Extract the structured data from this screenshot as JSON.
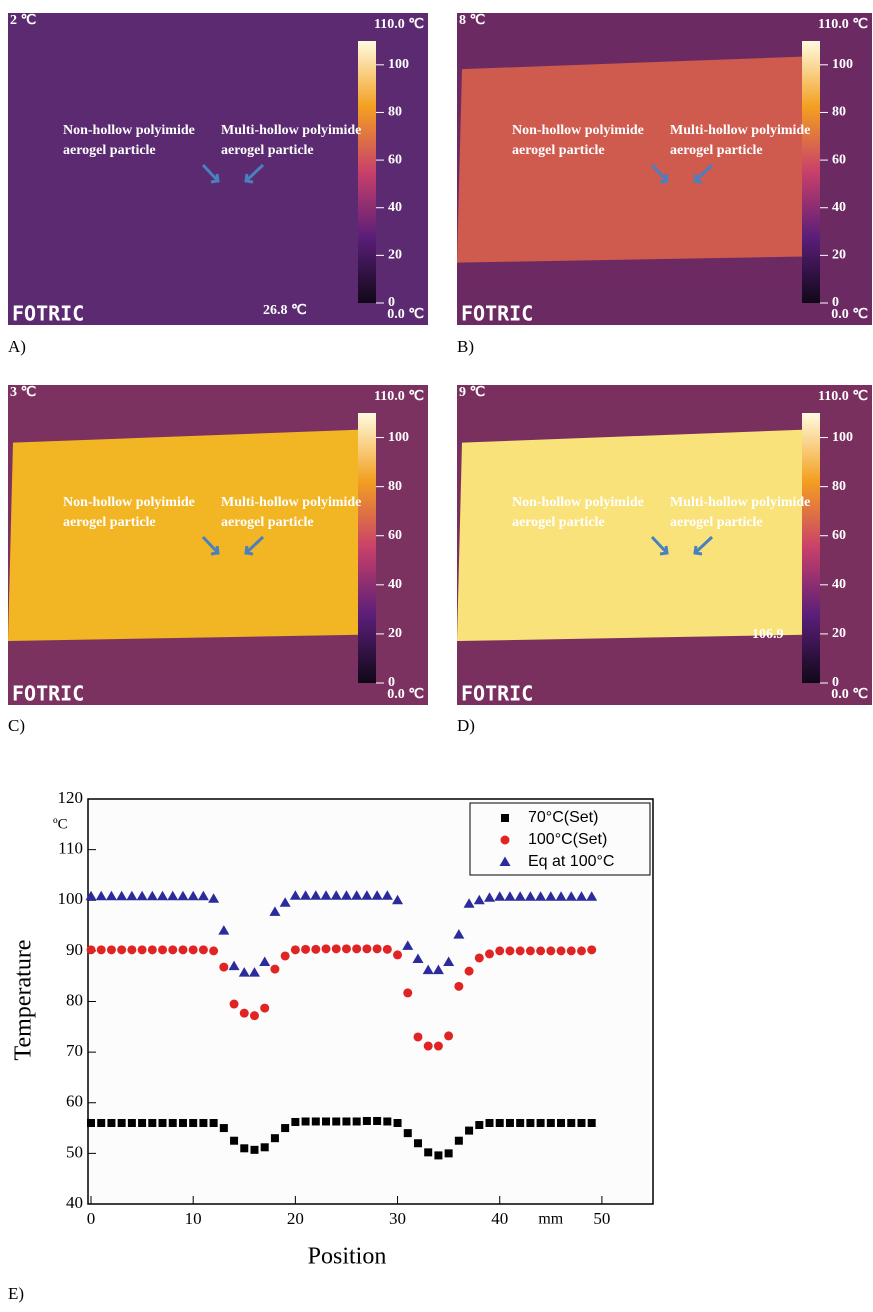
{
  "panels": [
    {
      "label": "A)",
      "top_left": "2 ℃",
      "max": "110.0 ℃",
      "min": "0.0 ℃",
      "annotation_left": [
        "Non-hollow polyimide",
        "aerogel particle"
      ],
      "annotation_right": [
        "Multi-hollow polyimide",
        "aerogel particle"
      ],
      "brand": "FOTRIC",
      "reading": "26.8 ℃"
    },
    {
      "label": "B)",
      "top_left": "8 ℃",
      "max": "110.0 ℃",
      "min": "0.0 ℃",
      "annotation_left": [
        "Non-hollow polyimide",
        "aerogel particle"
      ],
      "annotation_right": [
        "Multi-hollow polyimide",
        "aerogel particle"
      ],
      "brand": "FOTRIC"
    },
    {
      "label": "C)",
      "top_left": "3 ℃",
      "max": "110.0 ℃",
      "min": "0.0 ℃",
      "annotation_left": [
        "Non-hollow polyimide",
        "aerogel particle"
      ],
      "annotation_right": [
        "Multi-hollow polyimide",
        "aerogel particle"
      ],
      "brand": "FOTRIC"
    },
    {
      "label": "D)",
      "top_left": "9 ℃",
      "max": "110.0 ℃",
      "min": "0.0 ℃",
      "annotation_left": [
        "Non-hollow polyimide",
        "aerogel particle"
      ],
      "annotation_right": [
        "Multi-hollow polyimide",
        "aerogel particle"
      ],
      "brand": "FOTRIC",
      "reading": "106.9"
    }
  ],
  "colorbar_ticks": [
    100,
    80,
    60,
    40,
    20,
    0
  ],
  "colorbar_range": [
    0,
    110
  ],
  "chart_label": "E)",
  "chart_data": {
    "type": "scatter",
    "y_unit": "ºC",
    "x_unit": "mm",
    "xlabel": "Position",
    "ylabel": "Temperature",
    "x": [
      0,
      1,
      2,
      3,
      4,
      5,
      6,
      7,
      8,
      9,
      10,
      11,
      12,
      13,
      14,
      15,
      16,
      17,
      18,
      19,
      20,
      21,
      22,
      23,
      24,
      25,
      26,
      27,
      28,
      29,
      30,
      31,
      32,
      33,
      34,
      35,
      36,
      37,
      38,
      39,
      40,
      41,
      42,
      43,
      44,
      45,
      46,
      47,
      48,
      49
    ],
    "series": [
      {
        "name": "70°C(Set)",
        "color": "#000000",
        "marker": "square",
        "values": [
          56,
          56,
          56,
          56,
          56,
          56,
          56,
          56,
          56,
          56,
          56,
          56,
          56,
          55,
          52.5,
          51,
          50.7,
          51.2,
          53,
          55,
          56.2,
          56.3,
          56.3,
          56.3,
          56.3,
          56.3,
          56.3,
          56.4,
          56.4,
          56.3,
          56,
          54,
          52,
          50.2,
          49.6,
          50,
          52.5,
          54.5,
          55.6,
          56,
          56,
          56,
          56,
          56,
          56,
          56,
          56,
          56,
          56,
          56
        ]
      },
      {
        "name": "100°C(Set)",
        "color": "#e02424",
        "marker": "circle",
        "values": [
          90.2,
          90.2,
          90.2,
          90.2,
          90.2,
          90.2,
          90.2,
          90.2,
          90.2,
          90.2,
          90.2,
          90.2,
          90,
          86.8,
          79.5,
          77.7,
          77.2,
          78.7,
          86.4,
          89,
          90.2,
          90.3,
          90.3,
          90.4,
          90.4,
          90.4,
          90.4,
          90.4,
          90.4,
          90.3,
          89.2,
          81.7,
          73,
          71.2,
          71.2,
          73.2,
          83,
          86,
          88.6,
          89.4,
          90,
          90,
          90,
          90,
          90,
          90,
          90,
          90,
          90,
          90.2
        ]
      },
      {
        "name": "Eq at 100°C",
        "color": "#2b2b9c",
        "marker": "triangle",
        "values": [
          100.8,
          100.8,
          100.8,
          100.8,
          100.8,
          100.8,
          100.8,
          100.8,
          100.8,
          100.8,
          100.8,
          100.8,
          100.3,
          94,
          87,
          85.7,
          85.7,
          87.8,
          97.7,
          99.5,
          100.9,
          100.9,
          100.9,
          100.9,
          100.9,
          100.9,
          100.9,
          100.9,
          100.9,
          100.9,
          100,
          91,
          88.4,
          86.2,
          86.2,
          87.8,
          93.2,
          99.3,
          100,
          100.5,
          100.7,
          100.7,
          100.7,
          100.7,
          100.7,
          100.7,
          100.7,
          100.7,
          100.7,
          100.7
        ]
      }
    ],
    "xlim": [
      0,
      55
    ],
    "xticks": [
      0,
      10,
      20,
      30,
      40,
      50
    ],
    "ylim": [
      40,
      120
    ],
    "yticks": [
      40,
      50,
      60,
      70,
      80,
      90,
      100,
      110,
      120
    ],
    "legend": "top-right"
  }
}
